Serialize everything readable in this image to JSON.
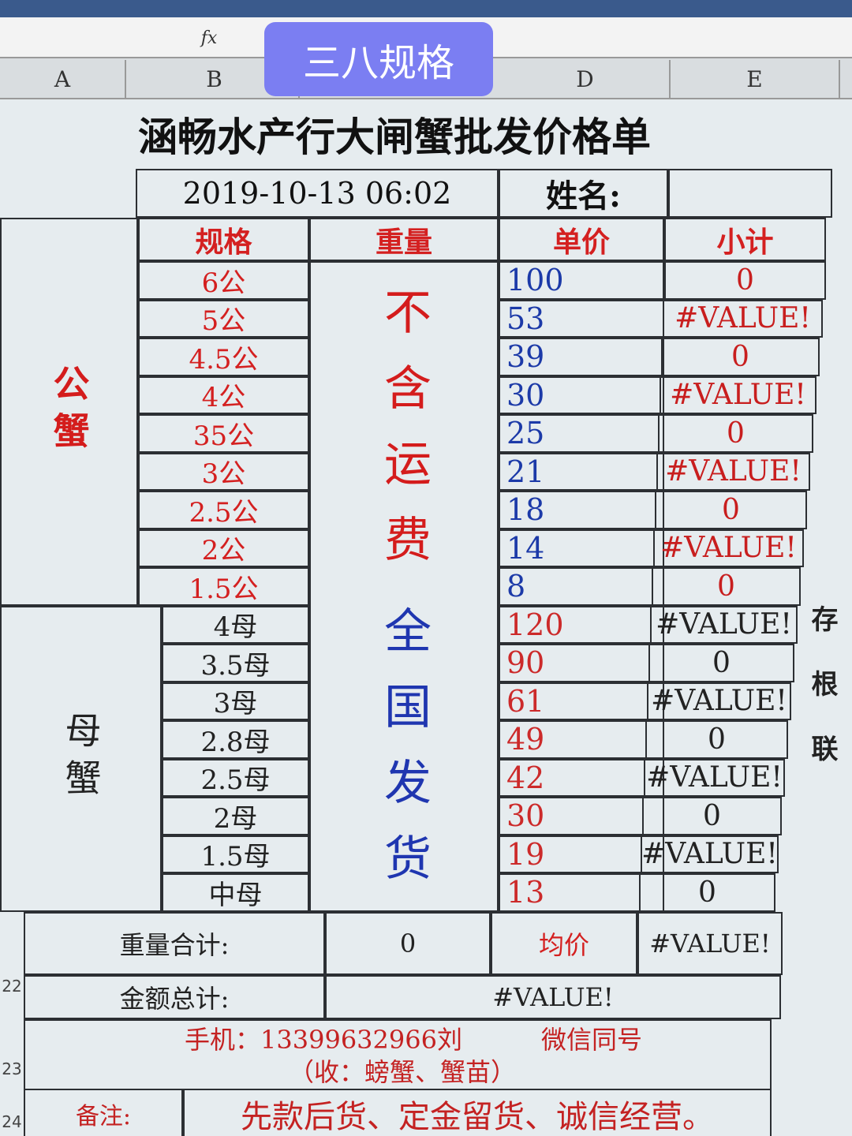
{
  "overlay_label": "三八规格",
  "formula_label": "fx",
  "columns": [
    "A",
    "B",
    "D",
    "E"
  ],
  "row_numbers": [
    "22",
    "23",
    "24"
  ],
  "sheet": {
    "title": "涵畅水产行大闸蟹批发价格单",
    "datetime": "2019-10-13 06:02",
    "name_label": "姓名:",
    "headers": [
      "规格",
      "重量",
      "单价",
      "小计"
    ],
    "male_group": "公蟹",
    "female_group": "母蟹",
    "weight_note": [
      "不含运费",
      "全国发货"
    ],
    "rows": [
      {
        "spec": "6公",
        "price": 100,
        "subtotal": 0
      },
      {
        "spec": "5公",
        "price": 53,
        "subtotal": "#VALUE!"
      },
      {
        "spec": "4.5公",
        "price": 39,
        "subtotal": 0
      },
      {
        "spec": "4公",
        "price": 30,
        "subtotal": "#VALUE!"
      },
      {
        "spec": "35公",
        "price": 25,
        "subtotal": 0
      },
      {
        "spec": "3公",
        "price": 21,
        "subtotal": "#VALUE!"
      },
      {
        "spec": "2.5公",
        "price": 18,
        "subtotal": 0
      },
      {
        "spec": "2公",
        "price": 14,
        "subtotal": "#VALUE!"
      },
      {
        "spec": "1.5公",
        "price": 8,
        "subtotal": 0
      },
      {
        "spec": "4母",
        "price": 120,
        "subtotal": "#VALUE!"
      },
      {
        "spec": "3.5母",
        "price": 90,
        "subtotal": 0
      },
      {
        "spec": "3母",
        "price": 61,
        "subtotal": "#VALUE!"
      },
      {
        "spec": "2.8母",
        "price": 49,
        "subtotal": 0
      },
      {
        "spec": "2.5母",
        "price": 42,
        "subtotal": "#VALUE!"
      },
      {
        "spec": "2母",
        "price": 30,
        "subtotal": 0
      },
      {
        "spec": "1.5母",
        "price": 19,
        "subtotal": "#VALUE!"
      },
      {
        "spec": "中母",
        "price": 13,
        "subtotal": 0
      }
    ],
    "total_weight_label": "重量合计:",
    "total_weight": 0,
    "avg_label": "均价",
    "avg": "#VALUE!",
    "total_amount_label": "金额总计:",
    "total_amount": "#VALUE!",
    "phone": "手机：13399632966刘",
    "wechat": "微信同号",
    "collect": "（收：螃蟹、蟹苗）",
    "remark_label": "备注:",
    "remark": "先款后货、定金留货、诚信经营。",
    "side_note": "存根联"
  }
}
